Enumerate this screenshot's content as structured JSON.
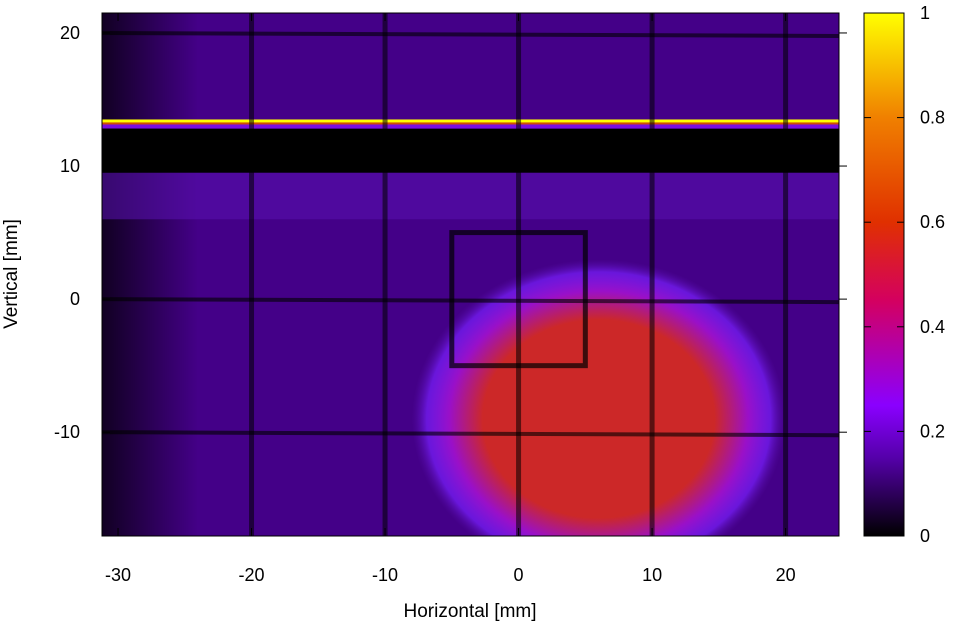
{
  "chart_data": {
    "type": "heatmap",
    "title": "",
    "xlabel": "Horizontal [mm]",
    "ylabel": "Vertical [mm]",
    "xlim": [
      -31.2,
      24
    ],
    "ylim": [
      -17.8,
      21.5
    ],
    "x_ticks": [
      -30,
      -20,
      -10,
      0,
      10,
      20
    ],
    "x_tick_labels": [
      "-30",
      "-20",
      "-10",
      "0",
      "10",
      "20"
    ],
    "y_ticks": [
      -10,
      0,
      10,
      20
    ],
    "y_tick_labels": [
      "-10",
      "0",
      "10",
      "20"
    ],
    "colorbar": {
      "range": [
        0,
        1
      ],
      "ticks": [
        0,
        0.2,
        0.4,
        0.6,
        0.8,
        1
      ],
      "tick_labels": [
        "0",
        "0.2",
        "0.4",
        "0.6",
        "0.8",
        "1"
      ],
      "colormap_stops": [
        {
          "value": 0.0,
          "color": "#000000"
        },
        {
          "value": 0.15,
          "color": "#5500aa"
        },
        {
          "value": 0.25,
          "color": "#8a00ff"
        },
        {
          "value": 0.45,
          "color": "#d40060"
        },
        {
          "value": 0.6,
          "color": "#e03000"
        },
        {
          "value": 0.8,
          "color": "#f08000"
        },
        {
          "value": 1.0,
          "color": "#ffff00"
        }
      ]
    },
    "background_intensity": 0.12,
    "beam_spot": {
      "center_x": 6,
      "center_y": -9,
      "radius_x": 14,
      "radius_y": 12,
      "peak": 0.5
    },
    "bright_line": {
      "y": 13.5,
      "intensity": 1.0
    },
    "dark_band": {
      "y_min": 9.5,
      "y_max": 12.8
    },
    "grid_lines_vertical_x": [
      -20,
      -10,
      0,
      10,
      20
    ],
    "grid_lines_horizontal_y": [
      -10,
      0,
      20
    ],
    "rectangle_outline": {
      "x_min": -5,
      "x_max": 5,
      "y_min": -5,
      "y_max": 5
    }
  }
}
